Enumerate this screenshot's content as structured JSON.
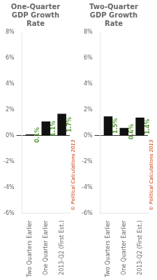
{
  "chart_data": [
    {
      "type": "bar",
      "title": "One-Quarter\nGDP Growth\nRate",
      "categories": [
        "Two Quarters Earlier",
        "One Quarter Earlier",
        "2013-Q2 (First Est.)"
      ],
      "values": [
        0.1,
        1.1,
        1.7
      ],
      "value_labels": [
        "0.1%",
        "1.1%",
        "1.7%"
      ],
      "data_labels": true,
      "color": "#111111",
      "ylim": [
        -6,
        8
      ],
      "yticks": [
        {
          "value": -6,
          "label": "-6%"
        },
        {
          "value": -4,
          "label": "-4%"
        },
        {
          "value": -2,
          "label": "-2%"
        },
        {
          "value": 0,
          "label": "0%"
        },
        {
          "value": 2,
          "label": "2%"
        },
        {
          "value": 4,
          "label": "4%"
        },
        {
          "value": 6,
          "label": "6%"
        },
        {
          "value": 8,
          "label": "8%"
        }
      ],
      "grid": false,
      "annotation": "© Political Calculations 2013"
    },
    {
      "type": "bar",
      "title": "Two-Quarter\nGDP Growth\nRate",
      "categories": [
        "Two Quarters Earlier",
        "One Quarter Earlier",
        "2013-Q2 (First Est.)"
      ],
      "values": [
        1.5,
        0.6,
        1.4
      ],
      "value_labels": [
        "1.5%",
        "0.6%",
        "1.4%"
      ],
      "data_labels": true,
      "color": "#111111",
      "ylim": [
        -6,
        8
      ],
      "yticks": [
        {
          "value": -6,
          "label": "-6%"
        },
        {
          "value": -4,
          "label": "-4%"
        },
        {
          "value": -2,
          "label": "-2%"
        },
        {
          "value": 0,
          "label": "0%"
        },
        {
          "value": 2,
          "label": "2%"
        },
        {
          "value": 4,
          "label": "4%"
        },
        {
          "value": 6,
          "label": "6%"
        },
        {
          "value": 8,
          "label": "8%"
        }
      ],
      "grid": false,
      "annotation": "© Political Calculations 2013"
    }
  ]
}
